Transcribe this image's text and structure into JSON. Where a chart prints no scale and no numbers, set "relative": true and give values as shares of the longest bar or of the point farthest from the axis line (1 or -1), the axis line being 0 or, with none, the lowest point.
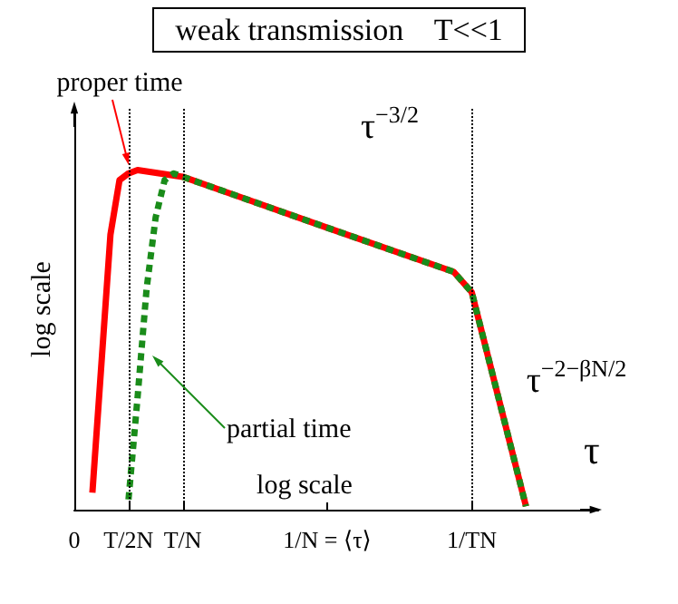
{
  "chart_data": {
    "type": "line",
    "title": "weak transmission    T<<1",
    "xlabel": "τ",
    "ylabel": "log scale",
    "relative": true,
    "marker": "none",
    "grid": false,
    "categories": [
      "0",
      null,
      null,
      null,
      null,
      null,
      "T/2N",
      null,
      null,
      null,
      null,
      null,
      "T/N",
      null,
      null,
      null,
      null,
      null,
      null,
      null,
      null,
      null,
      null,
      null,
      null,
      null,
      null,
      null,
      "1/N = ⟨τ⟩",
      null,
      null,
      null,
      null,
      null,
      null,
      null,
      null,
      null,
      null,
      null,
      null,
      null,
      null,
      null,
      "1/TN",
      null,
      null,
      null,
      null,
      null,
      null,
      null,
      null,
      null,
      null,
      null,
      null,
      null,
      null
    ],
    "series": [
      {
        "color": "#ff0000",
        "line_style": "solid",
        "values": [
          null,
          null,
          0.05,
          0.43,
          0.81,
          0.97,
          0.99,
          1.0,
          null,
          null,
          null,
          null,
          0.98,
          null,
          null,
          null,
          null,
          null,
          null,
          null,
          null,
          null,
          null,
          null,
          null,
          null,
          null,
          null,
          0.83,
          null,
          null,
          null,
          null,
          null,
          null,
          null,
          null,
          null,
          null,
          null,
          null,
          null,
          0.7,
          0.67,
          0.64,
          null,
          null,
          null,
          null,
          null,
          0.01,
          null,
          null,
          null,
          null,
          null,
          null,
          null,
          null
        ]
      },
      {
        "color": "#1a8c1a",
        "line_style": "dashed",
        "values": [
          null,
          null,
          null,
          null,
          null,
          null,
          0.03,
          0.33,
          0.65,
          0.86,
          0.97,
          0.99,
          0.98,
          null,
          null,
          null,
          null,
          null,
          null,
          null,
          null,
          null,
          null,
          null,
          null,
          null,
          null,
          null,
          0.83,
          null,
          null,
          null,
          null,
          null,
          null,
          null,
          null,
          null,
          null,
          null,
          null,
          null,
          0.7,
          0.67,
          0.64,
          null,
          null,
          null,
          null,
          null,
          0.01,
          null,
          null,
          null,
          null,
          null,
          null,
          null,
          null
        ]
      }
    ],
    "ref_lines": [
      {
        "axis": "x",
        "value": "T/2N",
        "color": "#000000",
        "line_style": "dotted"
      },
      {
        "axis": "x",
        "value": "T/N",
        "color": "#000000",
        "line_style": "dotted"
      },
      {
        "axis": "x",
        "value": "1/TN",
        "color": "#000000",
        "line_style": "dotted"
      }
    ],
    "annotations": [
      "proper time",
      "partial time",
      "τ$^{−3/2}$",
      "τ$^{−2−βN/2}$",
      "log scale"
    ]
  }
}
